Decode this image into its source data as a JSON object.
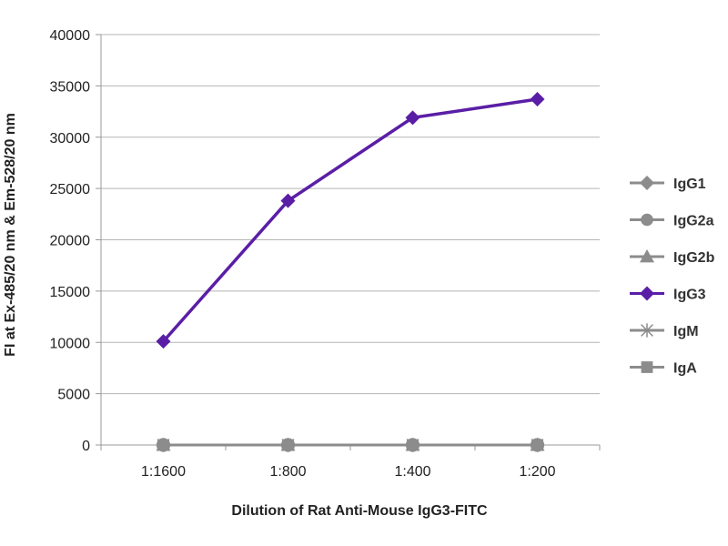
{
  "chart_data": {
    "type": "line",
    "title": "",
    "xlabel": "Dilution of Rat Anti-Mouse IgG3-FITC",
    "ylabel": "FI at Ex-485/20 nm & Em-528/20 nm",
    "categories": [
      "1:1600",
      "1:800",
      "1:400",
      "1:200"
    ],
    "ylim": [
      0,
      40000
    ],
    "yticks": [
      0,
      5000,
      10000,
      15000,
      20000,
      25000,
      30000,
      35000,
      40000
    ],
    "grid": true,
    "legend_position": "right",
    "series": [
      {
        "name": "IgG1",
        "values": [
          0,
          0,
          0,
          0
        ],
        "color": "#8c8c8c",
        "marker": "diamond"
      },
      {
        "name": "IgG2a",
        "values": [
          0,
          0,
          0,
          0
        ],
        "color": "#8c8c8c",
        "marker": "circle"
      },
      {
        "name": "IgG2b",
        "values": [
          0,
          0,
          0,
          0
        ],
        "color": "#8c8c8c",
        "marker": "triangle"
      },
      {
        "name": "IgG3",
        "values": [
          10100,
          23800,
          31900,
          33700
        ],
        "color": "#5a1ea6",
        "marker": "diamond"
      },
      {
        "name": "IgM",
        "values": [
          0,
          0,
          0,
          0
        ],
        "color": "#8c8c8c",
        "marker": "star"
      },
      {
        "name": "IgA",
        "values": [
          0,
          0,
          0,
          0
        ],
        "color": "#8c8c8c",
        "marker": "square"
      }
    ]
  }
}
